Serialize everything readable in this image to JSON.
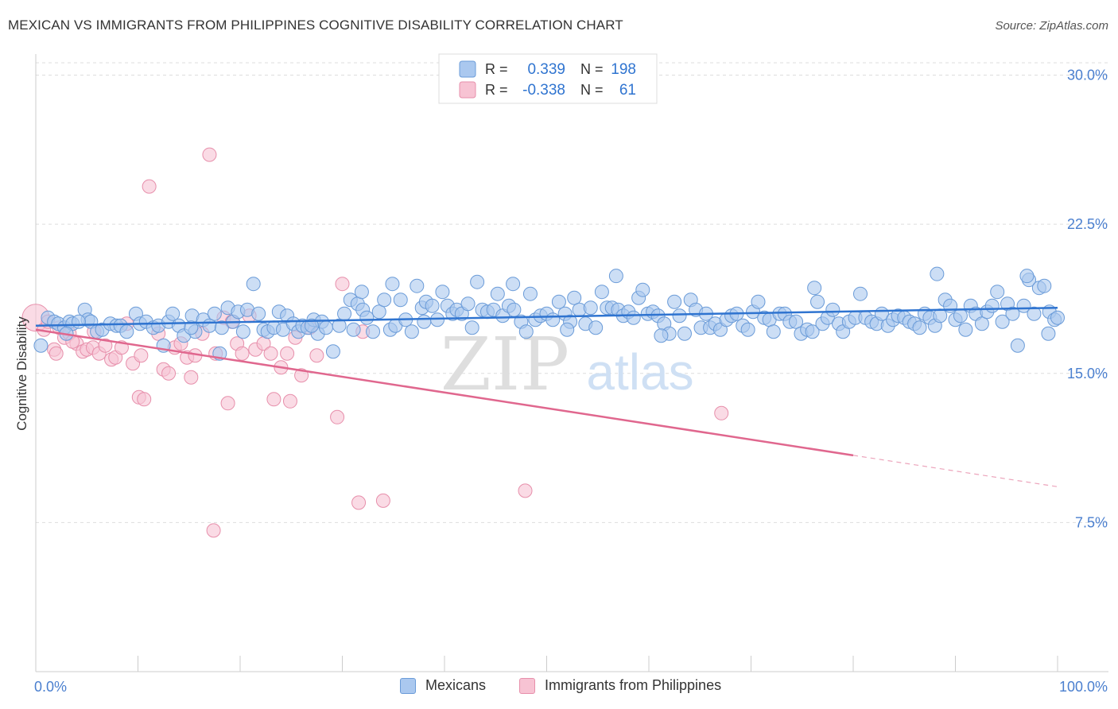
{
  "header": {
    "title": "MEXICAN VS IMMIGRANTS FROM PHILIPPINES COGNITIVE DISABILITY CORRELATION CHART",
    "source": "Source: ZipAtlas.com"
  },
  "watermark": {
    "zip": "ZIP",
    "atlas": "atlas"
  },
  "colors": {
    "blue_fill": "#aac8ef",
    "blue_stroke": "#6a9bd8",
    "blue_line": "#2f74d0",
    "pink_fill": "#f7c3d3",
    "pink_stroke": "#e78fab",
    "pink_line": "#e0678e",
    "axis_text": "#4a7fcf",
    "grid": "#dddddd"
  },
  "legend": {
    "r_label": "R =",
    "n_label": "N =",
    "rows": [
      {
        "series": "Mexicans",
        "r": "0.339",
        "n": "198"
      },
      {
        "series": "Immigrants from Philippines",
        "r": "-0.338",
        "n": "61"
      }
    ]
  },
  "chart_data": {
    "type": "scatter",
    "title": "MEXICAN VS IMMIGRANTS FROM PHILIPPINES COGNITIVE DISABILITY CORRELATION CHART",
    "xlabel": "",
    "ylabel": "Cognitive Disability",
    "xlim": [
      0,
      100
    ],
    "ylim": [
      0,
      31.5
    ],
    "x_tick_labels": [
      "0.0%",
      "100.0%"
    ],
    "y_ticks": [
      7.5,
      15.0,
      22.5,
      30.0
    ],
    "y_tick_labels": [
      "7.5%",
      "15.0%",
      "22.5%",
      "30.0%"
    ],
    "grid": true,
    "legend_position": "top-center",
    "series": [
      {
        "name": "Mexicans",
        "r": 0.339,
        "n": 198,
        "trend": {
          "x": [
            0,
            100
          ],
          "y": [
            17.4,
            18.3
          ],
          "solid_until": 100
        },
        "points": [
          [
            0.5,
            16.4
          ],
          [
            1.2,
            17.8
          ],
          [
            1.8,
            17.6
          ],
          [
            2.2,
            17.5
          ],
          [
            2.8,
            17.3
          ],
          [
            3.3,
            17.6
          ],
          [
            3.6,
            17.5
          ],
          [
            4.8,
            18.2
          ],
          [
            5.1,
            17.7
          ],
          [
            5.4,
            17.6
          ],
          [
            6.0,
            17.1
          ],
          [
            6.5,
            17.2
          ],
          [
            7.3,
            17.5
          ],
          [
            7.9,
            17.4
          ],
          [
            8.3,
            17.4
          ],
          [
            8.9,
            17.1
          ],
          [
            9.8,
            18.0
          ],
          [
            10.2,
            17.5
          ],
          [
            10.8,
            17.6
          ],
          [
            11.5,
            17.3
          ],
          [
            12.0,
            17.4
          ],
          [
            12.5,
            16.4
          ],
          [
            13.0,
            17.6
          ],
          [
            13.4,
            18.0
          ],
          [
            14.0,
            17.4
          ],
          [
            14.5,
            16.9
          ],
          [
            15.3,
            17.9
          ],
          [
            15.6,
            17.1
          ],
          [
            16.4,
            17.7
          ],
          [
            17.0,
            17.4
          ],
          [
            17.5,
            18.0
          ],
          [
            18.0,
            16.0
          ],
          [
            18.2,
            17.3
          ],
          [
            18.8,
            18.3
          ],
          [
            19.3,
            17.6
          ],
          [
            19.8,
            18.1
          ],
          [
            20.3,
            17.1
          ],
          [
            20.7,
            18.2
          ],
          [
            21.3,
            19.5
          ],
          [
            21.8,
            18.0
          ],
          [
            22.3,
            17.2
          ],
          [
            22.7,
            17.1
          ],
          [
            23.3,
            17.3
          ],
          [
            23.8,
            18.1
          ],
          [
            24.2,
            17.2
          ],
          [
            24.6,
            17.9
          ],
          [
            25.2,
            17.5
          ],
          [
            25.7,
            17.1
          ],
          [
            26.1,
            17.4
          ],
          [
            26.6,
            17.3
          ],
          [
            27.2,
            17.7
          ],
          [
            27.6,
            17.0
          ],
          [
            28.0,
            17.6
          ],
          [
            28.4,
            17.3
          ],
          [
            29.1,
            16.1
          ],
          [
            29.7,
            17.4
          ],
          [
            30.2,
            18.0
          ],
          [
            30.8,
            18.7
          ],
          [
            31.1,
            17.2
          ],
          [
            31.5,
            18.5
          ],
          [
            32.0,
            18.2
          ],
          [
            32.4,
            17.8
          ],
          [
            33.0,
            17.1
          ],
          [
            33.6,
            18.1
          ],
          [
            34.1,
            18.7
          ],
          [
            34.7,
            17.2
          ],
          [
            35.2,
            17.4
          ],
          [
            35.7,
            18.7
          ],
          [
            36.2,
            17.7
          ],
          [
            36.8,
            17.1
          ],
          [
            37.3,
            19.4
          ],
          [
            37.8,
            18.3
          ],
          [
            38.2,
            18.6
          ],
          [
            38.8,
            18.4
          ],
          [
            39.3,
            17.7
          ],
          [
            39.8,
            19.1
          ],
          [
            40.3,
            18.4
          ],
          [
            40.8,
            18.0
          ],
          [
            41.2,
            18.2
          ],
          [
            41.7,
            18.0
          ],
          [
            42.3,
            18.5
          ],
          [
            42.7,
            17.3
          ],
          [
            43.2,
            19.6
          ],
          [
            43.7,
            18.2
          ],
          [
            44.2,
            18.1
          ],
          [
            44.8,
            18.2
          ],
          [
            45.2,
            19.0
          ],
          [
            45.7,
            17.9
          ],
          [
            46.3,
            18.4
          ],
          [
            46.8,
            18.2
          ],
          [
            47.5,
            17.6
          ],
          [
            48.0,
            17.1
          ],
          [
            48.4,
            19.0
          ],
          [
            48.9,
            17.7
          ],
          [
            49.4,
            17.9
          ],
          [
            50.0,
            18.0
          ],
          [
            50.6,
            17.7
          ],
          [
            51.2,
            18.6
          ],
          [
            51.8,
            18.0
          ],
          [
            52.3,
            17.6
          ],
          [
            52.7,
            18.8
          ],
          [
            53.2,
            18.2
          ],
          [
            53.8,
            17.5
          ],
          [
            54.3,
            18.3
          ],
          [
            54.8,
            17.3
          ],
          [
            55.4,
            19.1
          ],
          [
            55.9,
            18.3
          ],
          [
            56.4,
            18.3
          ],
          [
            57.0,
            18.2
          ],
          [
            57.5,
            17.9
          ],
          [
            58.0,
            18.1
          ],
          [
            58.5,
            17.8
          ],
          [
            59.0,
            18.8
          ],
          [
            59.4,
            19.2
          ],
          [
            59.9,
            18.0
          ],
          [
            60.4,
            18.1
          ],
          [
            60.9,
            17.9
          ],
          [
            61.5,
            17.5
          ],
          [
            62.0,
            17.0
          ],
          [
            62.5,
            18.6
          ],
          [
            63.0,
            17.9
          ],
          [
            63.5,
            17.0
          ],
          [
            64.1,
            18.7
          ],
          [
            64.6,
            18.2
          ],
          [
            65.1,
            17.3
          ],
          [
            65.6,
            18.0
          ],
          [
            66.0,
            17.3
          ],
          [
            66.5,
            17.5
          ],
          [
            67.0,
            17.2
          ],
          [
            67.6,
            17.7
          ],
          [
            68.1,
            17.9
          ],
          [
            68.6,
            18.0
          ],
          [
            69.2,
            17.4
          ],
          [
            69.7,
            17.2
          ],
          [
            70.2,
            18.1
          ],
          [
            70.7,
            18.6
          ],
          [
            71.3,
            17.8
          ],
          [
            71.8,
            17.7
          ],
          [
            72.2,
            17.1
          ],
          [
            72.8,
            18.0
          ],
          [
            73.3,
            18.0
          ],
          [
            73.8,
            17.6
          ],
          [
            74.4,
            17.6
          ],
          [
            74.9,
            17.0
          ],
          [
            75.5,
            17.2
          ],
          [
            76.0,
            17.1
          ],
          [
            76.5,
            18.6
          ],
          [
            77.0,
            17.5
          ],
          [
            77.5,
            17.8
          ],
          [
            78.0,
            18.2
          ],
          [
            78.6,
            17.5
          ],
          [
            79.0,
            17.1
          ],
          [
            79.6,
            17.6
          ],
          [
            80.2,
            17.8
          ],
          [
            80.7,
            19.0
          ],
          [
            81.2,
            17.8
          ],
          [
            81.8,
            17.6
          ],
          [
            82.3,
            17.5
          ],
          [
            82.8,
            18.0
          ],
          [
            83.4,
            17.4
          ],
          [
            83.9,
            17.7
          ],
          [
            84.4,
            17.9
          ],
          [
            85.0,
            17.8
          ],
          [
            85.5,
            17.6
          ],
          [
            86.0,
            17.5
          ],
          [
            86.5,
            17.3
          ],
          [
            87.0,
            18.0
          ],
          [
            87.5,
            17.8
          ],
          [
            88.0,
            17.4
          ],
          [
            88.5,
            17.9
          ],
          [
            89.0,
            18.7
          ],
          [
            89.5,
            18.4
          ],
          [
            90.0,
            17.7
          ],
          [
            90.5,
            17.9
          ],
          [
            91.0,
            17.2
          ],
          [
            91.5,
            18.4
          ],
          [
            92.0,
            18.0
          ],
          [
            92.6,
            17.5
          ],
          [
            93.1,
            18.1
          ],
          [
            93.6,
            18.4
          ],
          [
            94.1,
            19.1
          ],
          [
            94.6,
            17.6
          ],
          [
            95.1,
            18.5
          ],
          [
            95.6,
            18.0
          ],
          [
            96.1,
            16.4
          ],
          [
            96.7,
            18.4
          ],
          [
            97.2,
            19.7
          ],
          [
            97.7,
            18.0
          ],
          [
            98.2,
            19.3
          ],
          [
            98.7,
            19.4
          ],
          [
            99.2,
            18.1
          ],
          [
            99.7,
            17.7
          ],
          [
            100.0,
            17.8
          ],
          [
            88.2,
            20.0
          ],
          [
            76.2,
            19.3
          ],
          [
            56.8,
            19.9
          ],
          [
            61.2,
            16.9
          ],
          [
            31.9,
            19.1
          ],
          [
            34.9,
            19.5
          ],
          [
            46.7,
            19.5
          ],
          [
            97.0,
            19.9
          ],
          [
            99.1,
            17.0
          ],
          [
            52.0,
            17.2
          ],
          [
            27.0,
            17.4
          ],
          [
            15.2,
            17.3
          ],
          [
            4.2,
            17.6
          ],
          [
            3.0,
            17.0
          ],
          [
            38.0,
            17.6
          ]
        ]
      },
      {
        "name": "Immigrants from Philippines",
        "r": -0.338,
        "n": 61,
        "trend": {
          "x": [
            0,
            100
          ],
          "y": [
            17.2,
            9.3
          ],
          "solid_until": 80
        },
        "points": [
          [
            0.0,
            17.8
          ],
          [
            0.8,
            17.2
          ],
          [
            1.2,
            17.6
          ],
          [
            1.8,
            16.2
          ],
          [
            2.3,
            17.3
          ],
          [
            2.8,
            16.8
          ],
          [
            3.3,
            17.0
          ],
          [
            4.0,
            16.5
          ],
          [
            4.6,
            16.1
          ],
          [
            5.0,
            16.2
          ],
          [
            5.6,
            16.3
          ],
          [
            6.2,
            16.0
          ],
          [
            6.8,
            16.4
          ],
          [
            7.4,
            15.7
          ],
          [
            7.8,
            15.8
          ],
          [
            8.4,
            16.3
          ],
          [
            8.9,
            17.5
          ],
          [
            9.5,
            15.5
          ],
          [
            10.1,
            13.8
          ],
          [
            10.3,
            15.9
          ],
          [
            10.6,
            13.7
          ],
          [
            11.1,
            24.4
          ],
          [
            12.0,
            17.0
          ],
          [
            12.5,
            15.2
          ],
          [
            13.0,
            15.0
          ],
          [
            13.6,
            16.3
          ],
          [
            14.2,
            16.5
          ],
          [
            14.8,
            15.8
          ],
          [
            15.2,
            14.8
          ],
          [
            15.6,
            15.9
          ],
          [
            16.3,
            17.0
          ],
          [
            17.0,
            26.0
          ],
          [
            17.4,
            7.1
          ],
          [
            17.6,
            16.0
          ],
          [
            18.4,
            17.8
          ],
          [
            18.8,
            13.5
          ],
          [
            19.2,
            17.6
          ],
          [
            19.7,
            16.5
          ],
          [
            20.2,
            16.0
          ],
          [
            20.9,
            17.9
          ],
          [
            21.5,
            16.2
          ],
          [
            22.3,
            16.5
          ],
          [
            23.0,
            16.0
          ],
          [
            23.3,
            13.7
          ],
          [
            24.0,
            15.3
          ],
          [
            24.6,
            16.0
          ],
          [
            24.9,
            13.6
          ],
          [
            25.4,
            16.8
          ],
          [
            26.0,
            14.9
          ],
          [
            26.8,
            17.3
          ],
          [
            27.5,
            15.9
          ],
          [
            29.5,
            12.8
          ],
          [
            30.0,
            19.5
          ],
          [
            31.6,
            8.5
          ],
          [
            32.0,
            17.1
          ],
          [
            34.0,
            8.6
          ],
          [
            47.9,
            9.1
          ],
          [
            67.1,
            13.0
          ],
          [
            5.7,
            17.1
          ],
          [
            3.6,
            16.6
          ],
          [
            2.0,
            16.0
          ]
        ]
      }
    ]
  }
}
